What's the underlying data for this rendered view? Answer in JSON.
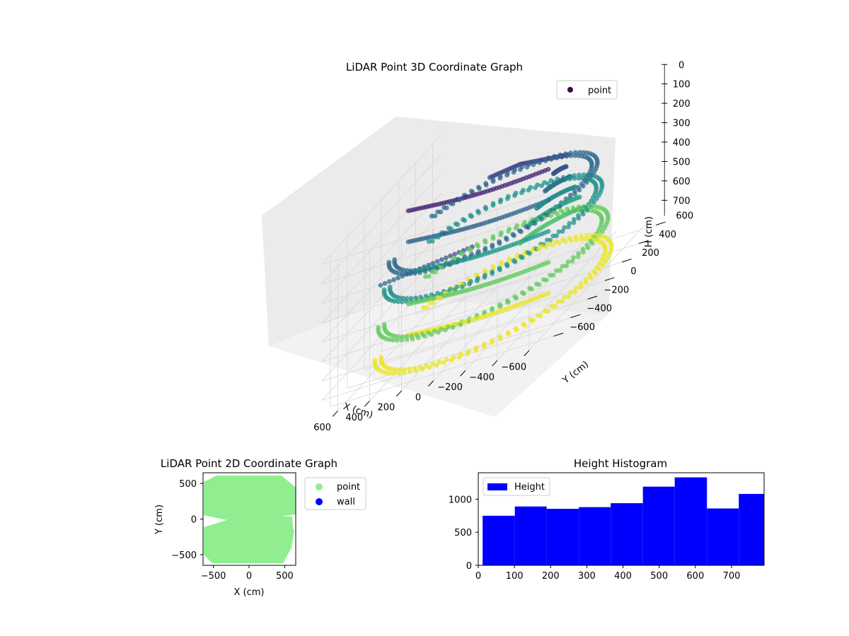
{
  "chart_data": [
    {
      "type": "scatter",
      "projection": "3d",
      "title": "LiDAR Point 3D Coordinate Graph",
      "xlabel": "X (cm)",
      "ylabel": "Y (cm)",
      "zlabel": "H (cm)",
      "xlim": [
        -700,
        700
      ],
      "ylim": [
        -700,
        700
      ],
      "zlim": [
        0,
        780
      ],
      "z_inverted": true,
      "xticks": [
        "−600",
        "−400",
        "−200",
        "0",
        "200",
        "400",
        "600"
      ],
      "yticks": [
        "−600",
        "−400",
        "−200",
        "0",
        "200",
        "400",
        "600"
      ],
      "zticks": [
        "0",
        "100",
        "200",
        "300",
        "400",
        "500",
        "600",
        "700"
      ],
      "colormap": "viridis",
      "legend": {
        "entries": [
          {
            "label": "point",
            "color": "#440154"
          }
        ],
        "placement": "top-right"
      },
      "series": [
        {
          "name": "point",
          "description_shape": "dense curved point bands: outer ring near H 700 around the room boundary, inner curtain near Y 0 sweeping to H 0, hanging fan cluster around X -300 Y 200"
        }
      ]
    },
    {
      "type": "scatter",
      "title": "LiDAR Point 2D Coordinate Graph",
      "xlabel": "X (cm)",
      "ylabel": "Y (cm)",
      "xlim": [
        -650,
        650
      ],
      "ylim": [
        -650,
        650
      ],
      "xticks": [
        "−500",
        "0",
        "500"
      ],
      "yticks": [
        "−500",
        "0",
        "500"
      ],
      "legend": {
        "entries": [
          {
            "label": "point",
            "color": "#90ee90"
          },
          {
            "label": "wall",
            "color": "#0000ff"
          }
        ],
        "placement": "outside-right"
      }
    },
    {
      "type": "bar",
      "histogram": true,
      "title": "Height Histogram",
      "xlabel": "",
      "ylabel": "",
      "bin_edges": [
        12,
        101,
        189,
        278,
        366,
        455,
        543,
        632,
        720,
        790
      ],
      "values": [
        750,
        890,
        855,
        880,
        940,
        1190,
        1330,
        860,
        1080
      ],
      "xlim": [
        0,
        790
      ],
      "ylim": [
        0,
        1400
      ],
      "xticks": [
        "0",
        "100",
        "200",
        "300",
        "400",
        "500",
        "600",
        "700"
      ],
      "yticks": [
        "0",
        "500",
        "1000"
      ],
      "color": "#0000ff",
      "legend": {
        "entries": [
          {
            "label": "Height",
            "color": "#0000ff"
          }
        ],
        "placement": "top-left"
      }
    }
  ]
}
